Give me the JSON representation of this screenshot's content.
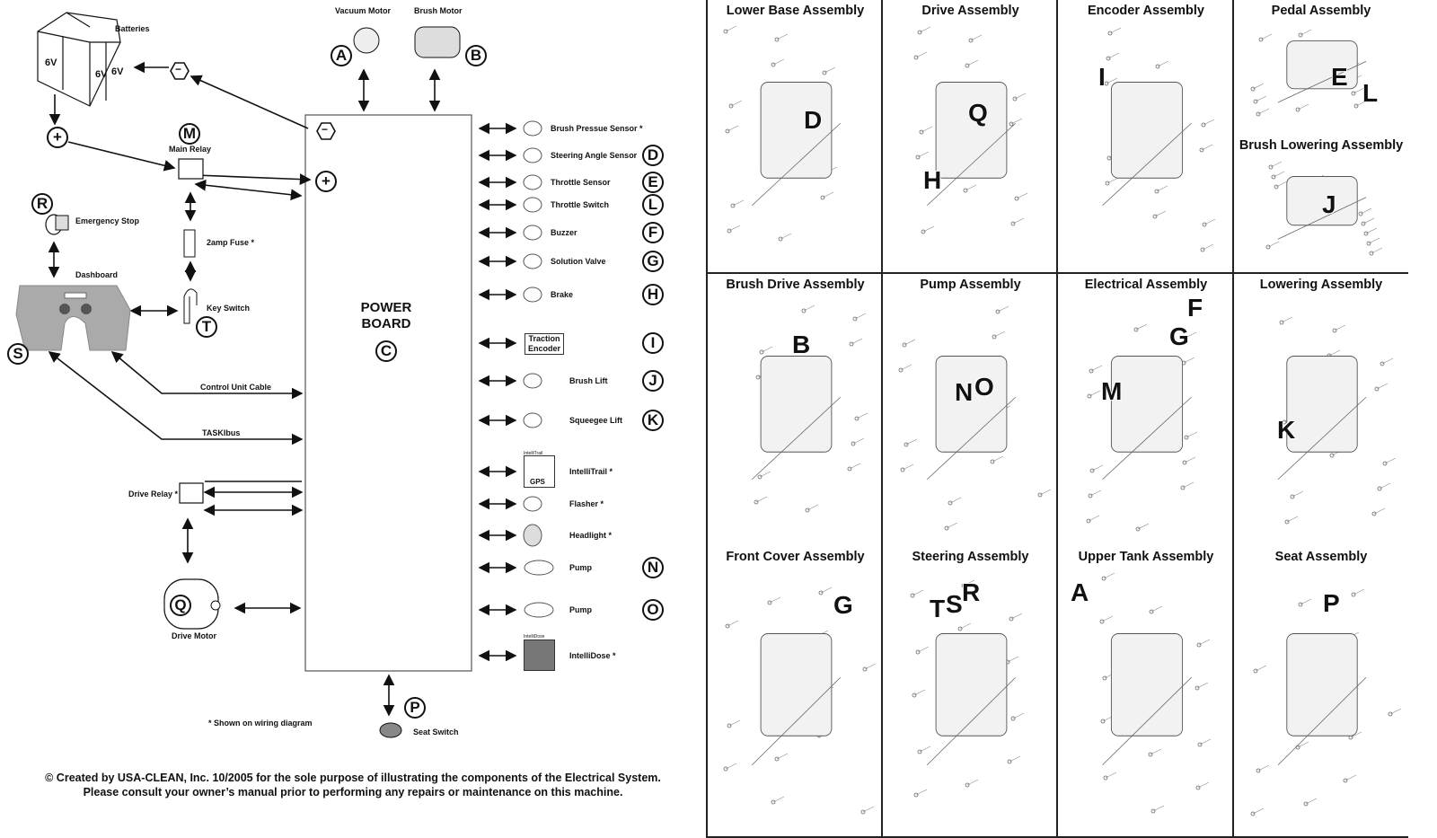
{
  "wiring": {
    "batteries": {
      "label": "Batteries",
      "cells": [
        "6V",
        "6V",
        "6V"
      ]
    },
    "vacuum_motor": {
      "label": "Vacuum Motor",
      "letter": "A"
    },
    "brush_motor": {
      "label": "Brush Motor",
      "letter": "B"
    },
    "power_board": {
      "line1": "POWER",
      "line2": "BOARD",
      "letter": "C",
      "minus": "−",
      "plus": "+"
    },
    "battery_minus": "−",
    "battery_plus": "+",
    "main_relay": {
      "label": "Main Relay",
      "letter": "M"
    },
    "emergency_stop": {
      "label": "Emergency Stop",
      "letter": "R"
    },
    "fuse": {
      "label": "2amp Fuse *"
    },
    "dashboard": {
      "label": "Dashboard",
      "letter": "S"
    },
    "key_switch": {
      "label": "Key Switch",
      "letter": "T"
    },
    "control_unit_cable": "Control Unit Cable",
    "taskibus": "TASKIbus",
    "drive_relay": {
      "label": "Drive Relay *"
    },
    "drive_motor": {
      "label": "Drive Motor",
      "letter": "Q"
    },
    "seat_switch": {
      "label": "Seat Switch",
      "letter": "P"
    },
    "note": "* Shown on wiring diagram",
    "traction_encoder": {
      "line1": "Traction",
      "line2": "Encoder",
      "letter": "I"
    },
    "intellitrail_tag": "IntelliTrail",
    "gps_tag": "GPS",
    "intellidose_tag": "IntelliDose",
    "components": [
      {
        "label": "Brush Pressue Sensor *",
        "letter": ""
      },
      {
        "label": "Steering Angle Sensor",
        "letter": "D"
      },
      {
        "label": "Throttle Sensor",
        "letter": "E"
      },
      {
        "label": "Throttle Switch",
        "letter": "L"
      },
      {
        "label": "Buzzer",
        "letter": "F"
      },
      {
        "label": "Solution Valve",
        "letter": "G"
      },
      {
        "label": "Brake",
        "letter": "H"
      },
      {
        "label": "",
        "letter": "I"
      },
      {
        "label": "Brush Lift",
        "letter": "J"
      },
      {
        "label": "Squeegee Lift",
        "letter": "K"
      },
      {
        "label": "IntelliTrail *",
        "letter": ""
      },
      {
        "label": "Flasher *",
        "letter": ""
      },
      {
        "label": "Headlight *",
        "letter": ""
      },
      {
        "label": "Pump",
        "letter": "N"
      },
      {
        "label": "Pump",
        "letter": "O"
      },
      {
        "label": "IntelliDose *",
        "letter": ""
      }
    ],
    "footer": {
      "line1": "© Created by USA-CLEAN, Inc. 10/2005 for the sole purpose of illustrating the components of the Electrical System.",
      "line2": "Please consult your owner’s manual prior to performing any repairs or maintenance on this machine."
    }
  },
  "assemblies": [
    {
      "title": "Lower Base Assembly",
      "letters": [
        "D"
      ]
    },
    {
      "title": "Drive Assembly",
      "letters": [
        "Q",
        "H"
      ]
    },
    {
      "title": "Encoder Assembly",
      "letters": [
        "I"
      ]
    },
    {
      "title": "Pedal Assembly",
      "letters": [
        "E",
        "L"
      ]
    },
    {
      "title": "Brush Lowering Assembly",
      "letters": [
        "J"
      ]
    },
    {
      "title": "Brush Drive Assembly",
      "letters": [
        "B"
      ]
    },
    {
      "title": "Pump Assembly",
      "letters": [
        "N",
        "O"
      ]
    },
    {
      "title": "Electrical Assembly",
      "letters": [
        "F",
        "G",
        "M"
      ]
    },
    {
      "title": "Lowering Assembly",
      "letters": [
        "K"
      ]
    },
    {
      "title": "Front Cover Assembly",
      "letters": [
        "G"
      ]
    },
    {
      "title": "Steering Assembly",
      "letters": [
        "T",
        "S",
        "R"
      ]
    },
    {
      "title": "Upper Tank Assembly",
      "letters": [
        "A"
      ]
    },
    {
      "title": "Seat Assembly",
      "letters": [
        "P"
      ]
    }
  ]
}
